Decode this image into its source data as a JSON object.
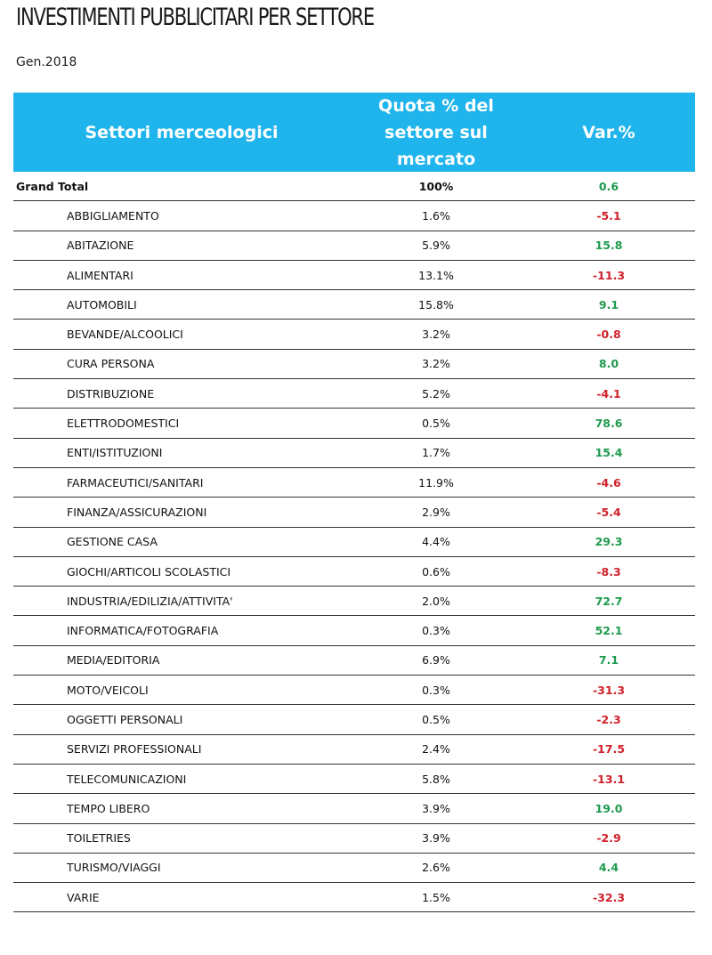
{
  "title": "INVESTIMENTI PUBBLICITARI PER SETTORE",
  "subtitle": "Gen.2018",
  "colors": {
    "header_bg": "#1fb4ec",
    "positive": "#1e9a4e",
    "negative": "#d0202a"
  },
  "table": {
    "headers": [
      "Settori merceologici",
      "Quota % del settore sul mercato",
      "Var.%"
    ],
    "total": {
      "label": "Grand Total",
      "share": "100%",
      "var": "0.6"
    },
    "rows": [
      {
        "label": "ABBIGLIAMENTO",
        "share": "1.6%",
        "var": "-5.1"
      },
      {
        "label": "ABITAZIONE",
        "share": "5.9%",
        "var": "15.8"
      },
      {
        "label": "ALIMENTARI",
        "share": "13.1%",
        "var": "-11.3"
      },
      {
        "label": "AUTOMOBILI",
        "share": "15.8%",
        "var": "9.1"
      },
      {
        "label": "BEVANDE/ALCOOLICI",
        "share": "3.2%",
        "var": "-0.8"
      },
      {
        "label": "CURA PERSONA",
        "share": "3.2%",
        "var": "8.0"
      },
      {
        "label": "DISTRIBUZIONE",
        "share": "5.2%",
        "var": "-4.1"
      },
      {
        "label": "ELETTRODOMESTICI",
        "share": "0.5%",
        "var": "78.6"
      },
      {
        "label": "ENTI/ISTITUZIONI",
        "share": "1.7%",
        "var": "15.4"
      },
      {
        "label": "FARMACEUTICI/SANITARI",
        "share": "11.9%",
        "var": "-4.6"
      },
      {
        "label": "FINANZA/ASSICURAZIONI",
        "share": "2.9%",
        "var": "-5.4"
      },
      {
        "label": "GESTIONE CASA",
        "share": "4.4%",
        "var": "29.3"
      },
      {
        "label": "GIOCHI/ARTICOLI SCOLASTICI",
        "share": "0.6%",
        "var": "-8.3"
      },
      {
        "label": "INDUSTRIA/EDILIZIA/ATTIVITA'",
        "share": "2.0%",
        "var": "72.7"
      },
      {
        "label": "INFORMATICA/FOTOGRAFIA",
        "share": "0.3%",
        "var": "52.1"
      },
      {
        "label": "MEDIA/EDITORIA",
        "share": "6.9%",
        "var": "7.1"
      },
      {
        "label": "MOTO/VEICOLI",
        "share": "0.3%",
        "var": "-31.3"
      },
      {
        "label": "OGGETTI PERSONALI",
        "share": "0.5%",
        "var": "-2.3"
      },
      {
        "label": "SERVIZI PROFESSIONALI",
        "share": "2.4%",
        "var": "-17.5"
      },
      {
        "label": "TELECOMUNICAZIONI",
        "share": "5.8%",
        "var": "-13.1"
      },
      {
        "label": "TEMPO LIBERO",
        "share": "3.9%",
        "var": "19.0"
      },
      {
        "label": "TOILETRIES",
        "share": "3.9%",
        "var": "-2.9"
      },
      {
        "label": "TURISMO/VIAGGI",
        "share": "2.6%",
        "var": "4.4"
      },
      {
        "label": "VARIE",
        "share": "1.5%",
        "var": "-32.3"
      }
    ]
  }
}
